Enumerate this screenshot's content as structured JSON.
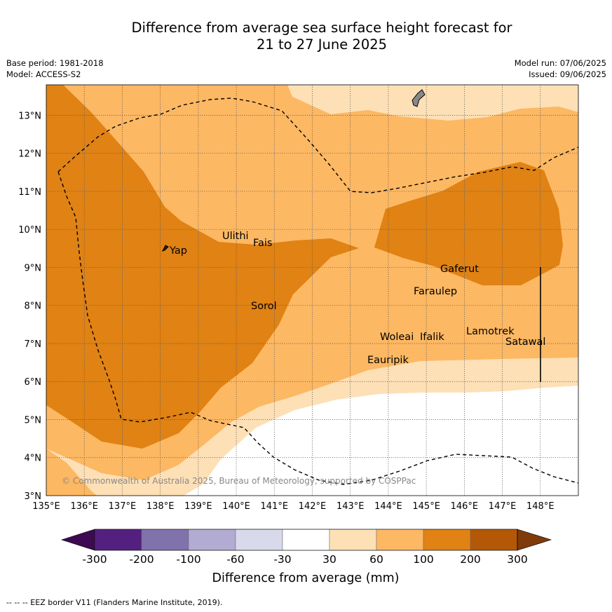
{
  "header": {
    "title_line1": "Difference from average sea surface height forecast for",
    "title_line2": "21 to 27 June 2025",
    "base_period": "Base period: 1981-2018",
    "model": "Model: ACCESS-S2",
    "model_run": "Model run: 07/06/2025",
    "issued": "Issued: 09/06/2025"
  },
  "map": {
    "lon_range": [
      135,
      149
    ],
    "lat_range": [
      3,
      13.8
    ],
    "x_tick_labels": [
      "135°E",
      "136°E",
      "137°E",
      "138°E",
      "139°E",
      "140°E",
      "141°E",
      "142°E",
      "143°E",
      "144°E",
      "145°E",
      "146°E",
      "147°E",
      "148°E"
    ],
    "y_tick_labels": [
      "3°N",
      "4°N",
      "5°N",
      "6°N",
      "7°N",
      "8°N",
      "9°N",
      "10°N",
      "11°N",
      "12°N",
      "13°N"
    ],
    "places": [
      {
        "name": "Yap"
      },
      {
        "name": "Ulithi"
      },
      {
        "name": "Fais"
      },
      {
        "name": "Sorol"
      },
      {
        "name": "Gaferut"
      },
      {
        "name": "Faraulep"
      },
      {
        "name": "Woleai"
      },
      {
        "name": "Ifalik"
      },
      {
        "name": "Lamotrek"
      },
      {
        "name": "Satawal"
      },
      {
        "name": "Eauripik"
      }
    ],
    "credit": "© Commonwealth of Australia 2025, Bureau of Meteorology, supported by COSPPac"
  },
  "colorbar": {
    "title": "Difference from average (mm)",
    "labels": [
      "-300",
      "-200",
      "-100",
      "-60",
      "-30",
      "30",
      "60",
      "100",
      "200",
      "300"
    ],
    "colors": [
      "#3d0a52",
      "#54207f",
      "#8073ac",
      "#b2abd2",
      "#d8daeb",
      "#ffffff",
      "#fee0b6",
      "#fdb863",
      "#e08214",
      "#b35806",
      "#7f3b08"
    ]
  },
  "footer": {
    "legend_text": "--  --  -- EEZ border V11 (Flanders Marine Institute, 2019)."
  }
}
